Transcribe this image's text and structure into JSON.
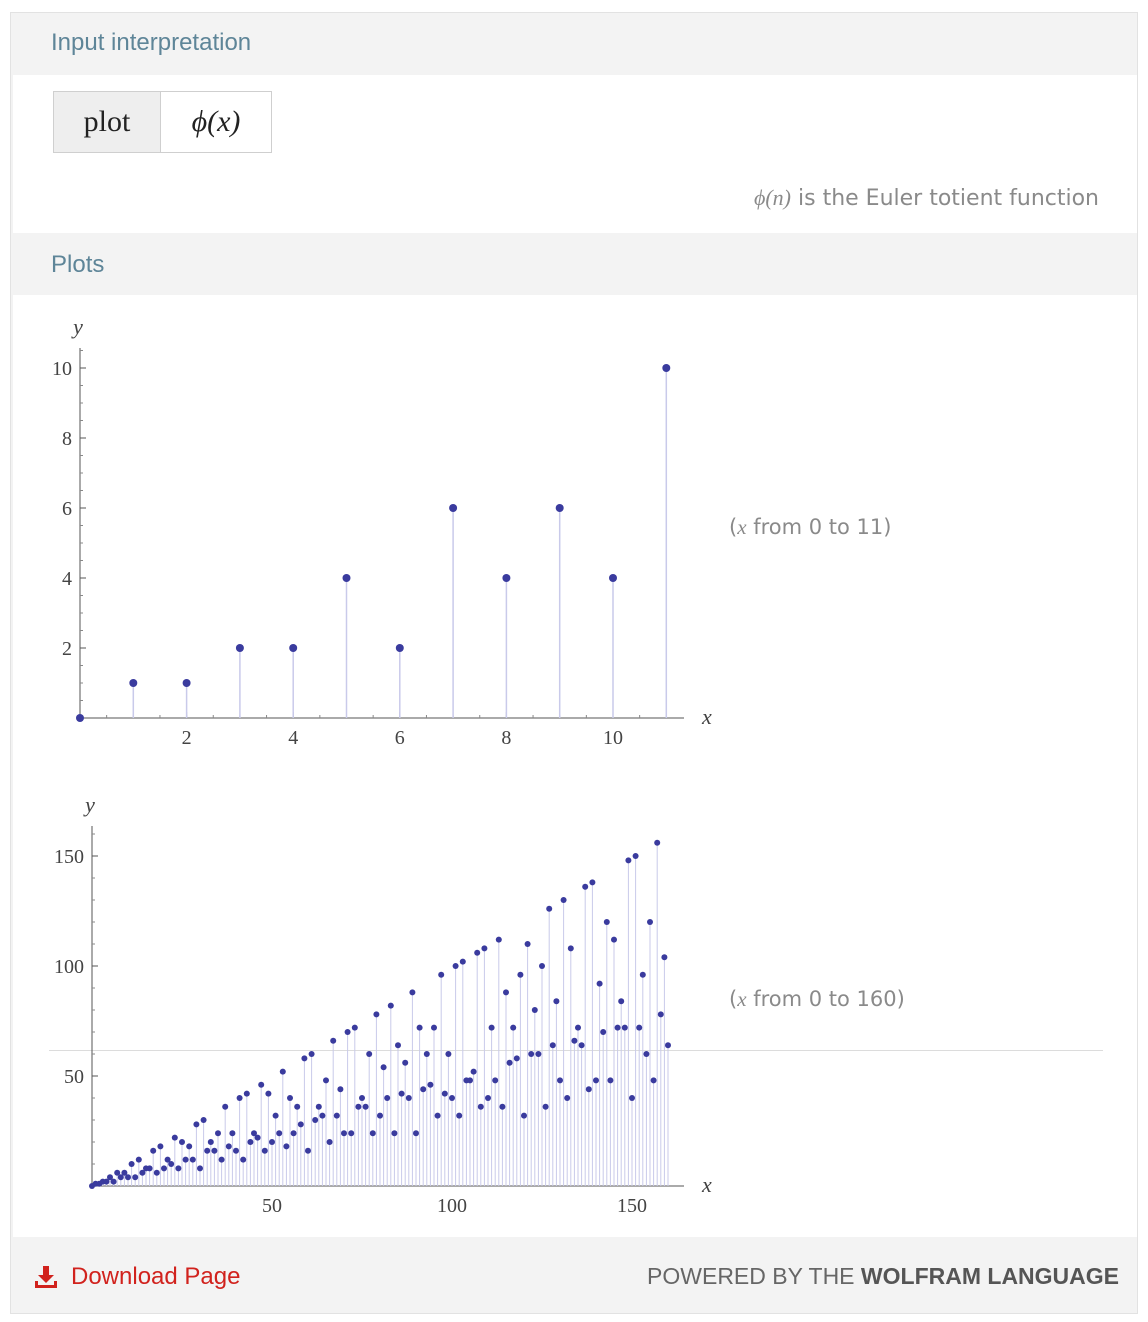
{
  "pods": {
    "input": {
      "title": "Input interpretation",
      "cell1": "plot",
      "cell2": "ϕ(x)",
      "note_fn": "ϕ(n)",
      "note_rest": " is the Euler totient function"
    },
    "plots": {
      "title": "Plots",
      "range1_pre": "(",
      "range1_var": "x",
      "range1_post": " from 0 to 11)",
      "range2_pre": "(",
      "range2_var": "x",
      "range2_post": " from 0 to 160)"
    }
  },
  "footer": {
    "download_label": "Download Page",
    "download_icon": "download-icon",
    "powered_prefix": "POWERED BY THE ",
    "powered_brand": "WOLFRAM LANGUAGE"
  },
  "colors": {
    "point": "#3a3b9e",
    "stem": "#c9caea",
    "header_text": "#5e8598",
    "download": "#d1221d"
  },
  "chart_data": [
    {
      "type": "scatter",
      "style": "discrete stem plot",
      "title": "",
      "xlabel": "x",
      "ylabel": "y",
      "xlim": [
        0,
        11
      ],
      "ylim": [
        0,
        10
      ],
      "xticks": [
        2,
        4,
        6,
        8,
        10
      ],
      "yticks": [
        2,
        4,
        6,
        8,
        10
      ],
      "x": [
        0,
        1,
        2,
        3,
        4,
        5,
        6,
        7,
        8,
        9,
        10,
        11
      ],
      "values": [
        0,
        1,
        1,
        2,
        2,
        4,
        2,
        6,
        4,
        6,
        4,
        10
      ]
    },
    {
      "type": "scatter",
      "style": "discrete stem plot",
      "title": "",
      "xlabel": "x",
      "ylabel": "y",
      "xlim": [
        0,
        160
      ],
      "ylim": [
        0,
        156
      ],
      "xticks": [
        50,
        100,
        150
      ],
      "yticks": [
        50,
        100,
        150
      ],
      "x": [
        0,
        1,
        2,
        3,
        4,
        5,
        6,
        7,
        8,
        9,
        10,
        11,
        12,
        13,
        14,
        15,
        16,
        17,
        18,
        19,
        20,
        21,
        22,
        23,
        24,
        25,
        26,
        27,
        28,
        29,
        30,
        31,
        32,
        33,
        34,
        35,
        36,
        37,
        38,
        39,
        40,
        41,
        42,
        43,
        44,
        45,
        46,
        47,
        48,
        49,
        50,
        51,
        52,
        53,
        54,
        55,
        56,
        57,
        58,
        59,
        60,
        61,
        62,
        63,
        64,
        65,
        66,
        67,
        68,
        69,
        70,
        71,
        72,
        73,
        74,
        75,
        76,
        77,
        78,
        79,
        80,
        81,
        82,
        83,
        84,
        85,
        86,
        87,
        88,
        89,
        90,
        91,
        92,
        93,
        94,
        95,
        96,
        97,
        98,
        99,
        100,
        101,
        102,
        103,
        104,
        105,
        106,
        107,
        108,
        109,
        110,
        111,
        112,
        113,
        114,
        115,
        116,
        117,
        118,
        119,
        120,
        121,
        122,
        123,
        124,
        125,
        126,
        127,
        128,
        129,
        130,
        131,
        132,
        133,
        134,
        135,
        136,
        137,
        138,
        139,
        140,
        141,
        142,
        143,
        144,
        145,
        146,
        147,
        148,
        149,
        150,
        151,
        152,
        153,
        154,
        155,
        156,
        157,
        158,
        159,
        160
      ],
      "values": [
        0,
        1,
        1,
        2,
        2,
        4,
        2,
        6,
        4,
        6,
        4,
        10,
        4,
        12,
        6,
        8,
        8,
        16,
        6,
        18,
        8,
        12,
        10,
        22,
        8,
        20,
        12,
        18,
        12,
        28,
        8,
        30,
        16,
        20,
        16,
        24,
        12,
        36,
        18,
        24,
        16,
        40,
        12,
        42,
        20,
        24,
        22,
        46,
        16,
        42,
        20,
        32,
        24,
        52,
        18,
        40,
        24,
        36,
        28,
        58,
        16,
        60,
        30,
        36,
        32,
        48,
        20,
        66,
        32,
        44,
        24,
        70,
        24,
        72,
        36,
        40,
        36,
        60,
        24,
        78,
        32,
        54,
        40,
        82,
        24,
        64,
        42,
        56,
        40,
        88,
        24,
        72,
        44,
        60,
        46,
        72,
        32,
        96,
        42,
        60,
        40,
        100,
        32,
        102,
        48,
        48,
        52,
        106,
        36,
        108,
        40,
        72,
        48,
        112,
        36,
        88,
        56,
        72,
        58,
        96,
        32,
        110,
        60,
        80,
        60,
        100,
        36,
        126,
        64,
        84,
        48,
        130,
        40,
        108,
        66,
        72,
        64,
        136,
        44,
        138,
        48,
        92,
        70,
        120,
        48,
        112,
        72,
        84,
        72,
        148,
        40,
        150,
        72,
        96,
        60,
        120,
        48,
        156,
        78,
        104,
        64
      ]
    }
  ]
}
